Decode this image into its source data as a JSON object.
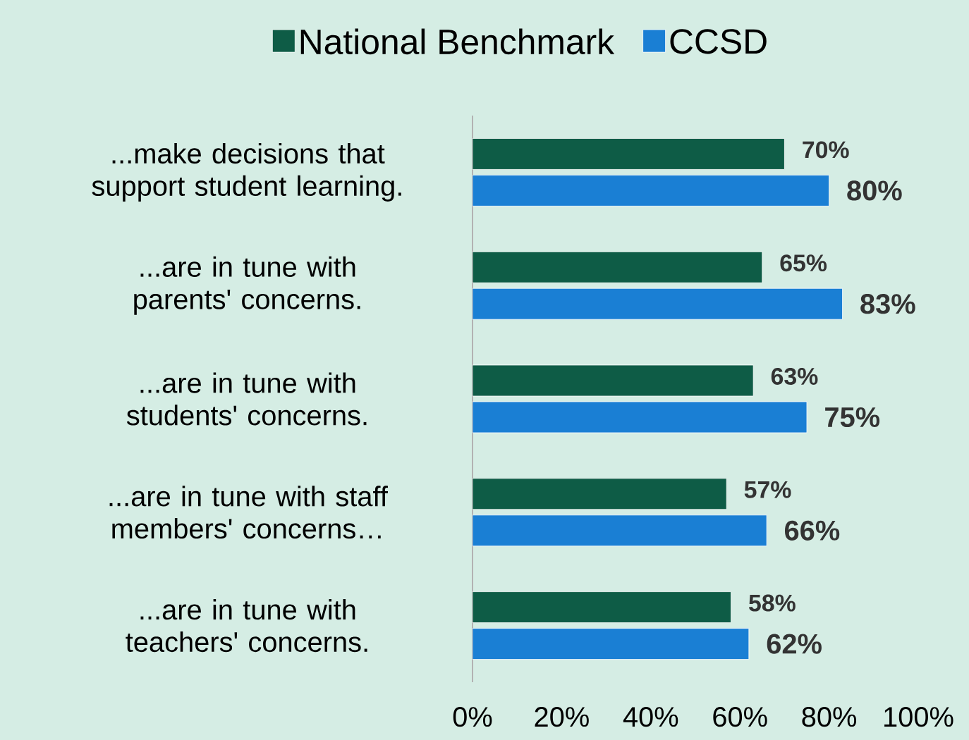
{
  "chart_data": {
    "type": "bar",
    "orientation": "horizontal",
    "categories": [
      "...make decisions that support student learning.",
      "...are in tune with parents' concerns.",
      "...are in tune with students' concerns.",
      "...are in tune with staff members' concerns…",
      "...are in tune with teachers' concerns."
    ],
    "series": [
      {
        "name": "National Benchmark",
        "color": "#0e5c46",
        "values": [
          70,
          65,
          63,
          57,
          58
        ],
        "value_labels": [
          "70%",
          "65%",
          "63%",
          "57%",
          "58%"
        ]
      },
      {
        "name": "CCSD",
        "color": "#1a7fd4",
        "values": [
          80,
          83,
          75,
          66,
          62
        ],
        "value_labels": [
          "80%",
          "83%",
          "75%",
          "66%",
          "62%"
        ]
      }
    ],
    "xlim": [
      0,
      100
    ],
    "xticks": [
      {
        "value": 0,
        "label": "0%"
      },
      {
        "value": 20,
        "label": "20%"
      },
      {
        "value": 40,
        "label": "40%"
      },
      {
        "value": 60,
        "label": "60%"
      },
      {
        "value": 80,
        "label": "80%"
      },
      {
        "value": 100,
        "label": "100%"
      }
    ],
    "legend": "top",
    "grid": false
  }
}
